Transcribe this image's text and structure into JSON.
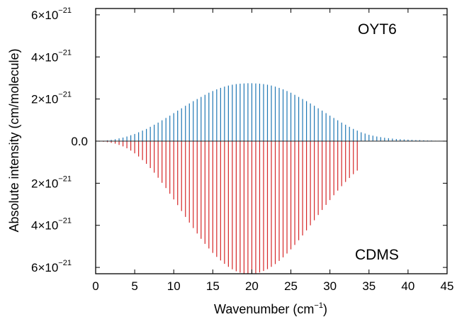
{
  "chart_data": {
    "type": "bar",
    "orientation": "mirrored",
    "xlabel": "Wavenumber (cm",
    "xlabel_sup": "−1",
    "xlabel_suffix": ")",
    "ylabel": "Absolute intensity (cm/molecule)",
    "xlim": [
      0,
      45
    ],
    "ylim": [
      -6.4e-21,
      6.5e-21
    ],
    "grid": false,
    "x_ticks": [
      0,
      5,
      10,
      15,
      20,
      25,
      30,
      35,
      40,
      45
    ],
    "x_tick_labels": [
      "0",
      "5",
      "10",
      "15",
      "20",
      "25",
      "30",
      "35",
      "40",
      "45"
    ],
    "y_ticks": [
      {
        "value": 6e-21,
        "mantissa": "6×10",
        "exp": "−21"
      },
      {
        "value": 4e-21,
        "mantissa": "4×10",
        "exp": "−21"
      },
      {
        "value": 2e-21,
        "mantissa": "2×10",
        "exp": "−21"
      },
      {
        "value": 0,
        "mantissa": "0.0",
        "exp": ""
      },
      {
        "value": -2e-21,
        "mantissa": "2×10",
        "exp": "−21"
      },
      {
        "value": -4e-21,
        "mantissa": "4×10",
        "exp": "−21"
      },
      {
        "value": -6e-21,
        "mantissa": "6×10",
        "exp": "−21"
      }
    ],
    "series": [
      {
        "name": "OYT6",
        "direction": "up",
        "color": "#1f77b4",
        "x": [
          0.5,
          1.0,
          1.5,
          2.0,
          2.5,
          3.0,
          3.5,
          4.0,
          4.5,
          5.0,
          5.5,
          6.0,
          6.5,
          7.0,
          7.5,
          8.0,
          8.5,
          9.0,
          9.5,
          10.0,
          10.5,
          11.0,
          11.5,
          12.0,
          12.5,
          13.0,
          13.5,
          14.0,
          14.5,
          15.0,
          15.5,
          16.0,
          16.5,
          17.0,
          17.5,
          18.0,
          18.5,
          19.0,
          19.5,
          20.0,
          20.5,
          21.0,
          21.5,
          22.0,
          22.5,
          23.0,
          23.5,
          24.0,
          24.5,
          25.0,
          25.5,
          26.0,
          26.5,
          27.0,
          27.5,
          28.0,
          28.5,
          29.0,
          29.5,
          30.0,
          30.5,
          31.0,
          31.5,
          32.0,
          32.5,
          33.0,
          33.5,
          34.0,
          34.5,
          35.0,
          35.5,
          36.0,
          36.5,
          37.0,
          37.5,
          38.0,
          38.5,
          39.0,
          39.5,
          40.0,
          40.5,
          41.0,
          41.5,
          42.0,
          42.5,
          43.0,
          43.5,
          44.0,
          44.5
        ],
        "values": [
          1e-23,
          2e-23,
          4e-23,
          6e-23,
          9e-23,
          1.3e-22,
          1.7e-22,
          2.2e-22,
          2.8e-22,
          3.4e-22,
          4.2e-22,
          5e-22,
          5.8e-22,
          6.8e-22,
          7.8e-22,
          8.8e-22,
          9.9e-22,
          1.1e-21,
          1.21e-21,
          1.33e-21,
          1.45e-21,
          1.56e-21,
          1.68e-21,
          1.79e-21,
          1.9e-21,
          2e-21,
          2.1e-21,
          2.2e-21,
          2.3e-21,
          2.38e-21,
          2.46e-21,
          2.53e-21,
          2.59e-21,
          2.64e-21,
          2.68e-21,
          2.71e-21,
          2.73e-21,
          2.74e-21,
          2.75e-21,
          2.75e-21,
          2.74e-21,
          2.73e-21,
          2.71e-21,
          2.68e-21,
          2.64e-21,
          2.59e-21,
          2.53e-21,
          2.46e-21,
          2.38e-21,
          2.3e-21,
          2.2e-21,
          2.1e-21,
          2e-21,
          1.9e-21,
          1.79e-21,
          1.68e-21,
          1.56e-21,
          1.45e-21,
          1.33e-21,
          1.21e-21,
          1.1e-21,
          9.9e-22,
          8.8e-22,
          7.8e-22,
          6.8e-22,
          5.8e-22,
          5e-22,
          4.2e-22,
          3.6e-22,
          3e-22,
          2.6e-22,
          2.2e-22,
          1.9e-22,
          1.6e-22,
          1.4e-22,
          1.2e-22,
          1e-22,
          9e-23,
          8e-23,
          7e-23,
          6e-23,
          5e-23,
          5e-23,
          4e-23,
          3e-23,
          3e-23,
          2e-23,
          2e-23,
          1e-23
        ]
      },
      {
        "name": "CDMS",
        "direction": "down",
        "color": "#d62728",
        "x": [
          0.5,
          1.0,
          1.5,
          2.0,
          2.5,
          3.0,
          3.5,
          4.0,
          4.5,
          5.0,
          5.5,
          6.0,
          6.5,
          7.0,
          7.5,
          8.0,
          8.5,
          9.0,
          9.5,
          10.0,
          10.5,
          11.0,
          11.5,
          12.0,
          12.5,
          13.0,
          13.5,
          14.0,
          14.5,
          15.0,
          15.5,
          16.0,
          16.5,
          17.0,
          17.5,
          18.0,
          18.5,
          19.0,
          19.5,
          20.0,
          20.5,
          21.0,
          21.5,
          22.0,
          22.5,
          23.0,
          23.5,
          24.0,
          24.5,
          25.0,
          25.5,
          26.0,
          26.5,
          27.0,
          27.5,
          28.0,
          28.5,
          29.0,
          29.5,
          30.0,
          30.5,
          31.0,
          31.5,
          32.0,
          32.5,
          33.0,
          33.5
        ],
        "values": [
          2e-23,
          3e-23,
          5e-23,
          8e-23,
          1.2e-22,
          1.8e-22,
          2.5e-22,
          3.4e-22,
          4.5e-22,
          5.8e-22,
          7.3e-22,
          9e-22,
          1.08e-21,
          1.28e-21,
          1.5e-21,
          1.74e-21,
          1.98e-21,
          2.23e-21,
          2.5e-21,
          2.77e-21,
          3.04e-21,
          3.32e-21,
          3.6e-21,
          3.87e-21,
          4.13e-21,
          4.39e-21,
          4.64e-21,
          4.88e-21,
          5.1e-21,
          5.31e-21,
          5.5e-21,
          5.67e-21,
          5.83e-21,
          5.97e-21,
          6.09e-21,
          6.18e-21,
          6.25e-21,
          6.29e-21,
          6.3e-21,
          6.3e-21,
          6.28e-21,
          6.24e-21,
          6.17e-21,
          6.08e-21,
          5.97e-21,
          5.84e-21,
          5.69e-21,
          5.52e-21,
          5.34e-21,
          5.14e-21,
          4.93e-21,
          4.71e-21,
          4.48e-21,
          4.24e-21,
          4e-21,
          3.76e-21,
          3.51e-21,
          3.27e-21,
          3.03e-21,
          2.8e-21,
          2.57e-21,
          2.35e-21,
          2.14e-21,
          1.94e-21,
          1.75e-21,
          1.57e-21,
          1.4e-21
        ]
      }
    ],
    "annotations": [
      {
        "text": "OYT6",
        "position": "top-right"
      },
      {
        "text": "CDMS",
        "position": "bottom-right"
      }
    ]
  }
}
